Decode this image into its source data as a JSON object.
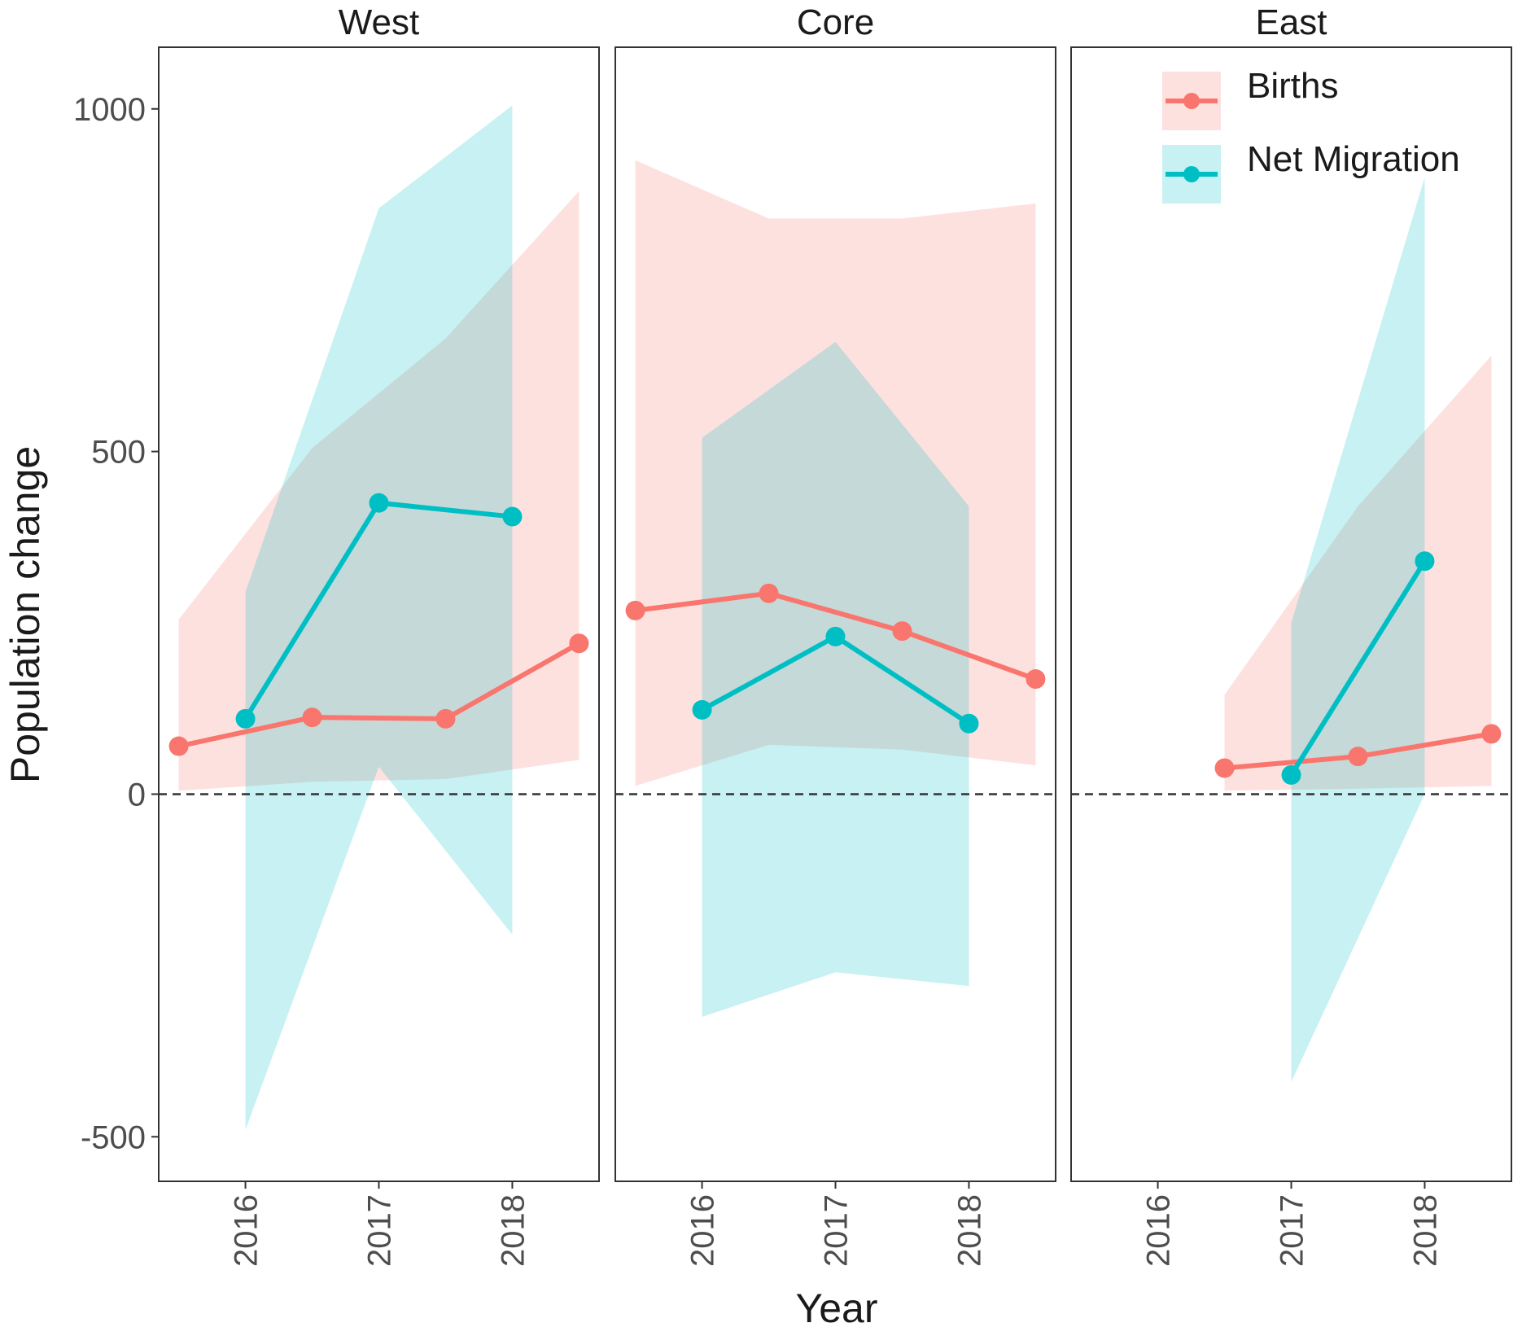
{
  "chart_data": {
    "type": "line",
    "facets": [
      "West",
      "Core",
      "East"
    ],
    "xlabel": "Year",
    "ylabel": "Population change",
    "x_ticks": [
      2016,
      2017,
      2018
    ],
    "x_range": [
      2015.35,
      2018.65
    ],
    "y_ticks": [
      -500,
      0,
      500,
      1000
    ],
    "ylim": [
      -565,
      1090
    ],
    "reference_line": 0,
    "legend_position": "top-right",
    "colors": {
      "Births": "#F8766D",
      "Net Migration": "#00BFC4"
    },
    "series": [
      {
        "name": "Births",
        "panels": {
          "West": {
            "x": [
              2015.5,
              2016.5,
              2017.5,
              2018.5
            ],
            "y": [
              70,
              112,
              110,
              220
            ],
            "lower": [
              5,
              18,
              22,
              50
            ],
            "upper": [
              255,
              505,
              665,
              880
            ]
          },
          "Core": {
            "x": [
              2015.5,
              2016.5,
              2017.5,
              2018.5
            ],
            "y": [
              268,
              293,
              238,
              168
            ],
            "lower": [
              12,
              72,
              65,
              42
            ],
            "upper": [
              925,
              840,
              840,
              862
            ]
          },
          "East": {
            "x": [
              2016.5,
              2017.5,
              2018.5
            ],
            "y": [
              38,
              55,
              88
            ],
            "lower": [
              5,
              8,
              12
            ],
            "upper": [
              145,
              420,
              640
            ]
          }
        }
      },
      {
        "name": "Net Migration",
        "panels": {
          "West": {
            "x": [
              2016,
              2017,
              2018
            ],
            "y": [
              110,
              425,
              405
            ],
            "lower": [
              -490,
              40,
              -205
            ],
            "upper": [
              295,
              855,
              1005
            ]
          },
          "Core": {
            "x": [
              2016,
              2017,
              2018
            ],
            "y": [
              123,
              230,
              103
            ],
            "lower": [
              -325,
              -260,
              -280
            ],
            "upper": [
              520,
              660,
              420
            ]
          },
          "East": {
            "x": [
              2017,
              2018
            ],
            "y": [
              28,
              340
            ],
            "lower": [
              -420,
              0
            ],
            "upper": [
              250,
              900
            ]
          }
        }
      }
    ]
  }
}
